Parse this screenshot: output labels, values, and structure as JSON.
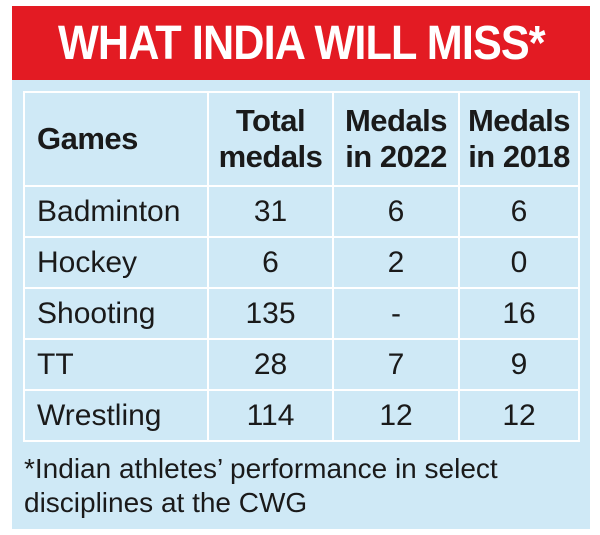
{
  "title": "WHAT INDIA WILL MISS*",
  "colors": {
    "title_background": "#e31b23",
    "title_text": "#ffffff",
    "panel_background": "#cfe9f6",
    "grid_lines": "#ffffff",
    "body_text": "#1a1a1a"
  },
  "chart_data": {
    "type": "table",
    "title": "WHAT INDIA WILL MISS*",
    "columns": [
      {
        "label": "Games"
      },
      {
        "label_lines": [
          "Total",
          "medals"
        ]
      },
      {
        "label_lines": [
          "Medals",
          "in 2022"
        ]
      },
      {
        "label_lines": [
          "Medals",
          "in 2018"
        ]
      }
    ],
    "rows": [
      {
        "game": "Badminton",
        "total": "31",
        "m2022": "6",
        "m2018": "6"
      },
      {
        "game": "Hockey",
        "total": "6",
        "m2022": "2",
        "m2018": "0"
      },
      {
        "game": "Shooting",
        "total": "135",
        "m2022": "-",
        "m2018": "16"
      },
      {
        "game": "TT",
        "total": "28",
        "m2022": "7",
        "m2018": "9"
      },
      {
        "game": "Wrestling",
        "total": "114",
        "m2022": "12",
        "m2018": "12"
      }
    ]
  },
  "footnote": "*Indian athletes’ performance in select disciplines at the CWG"
}
